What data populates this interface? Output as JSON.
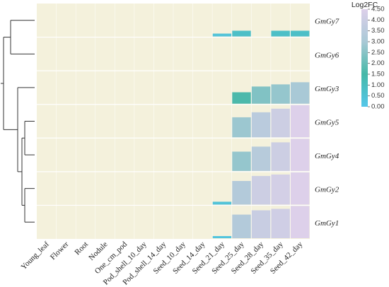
{
  "chart_data": {
    "type": "heatmap",
    "legend_title": "Log2FC",
    "legend_ticks": [
      "4.50",
      "4.00",
      "3.50",
      "3.00",
      "2.50",
      "2.00",
      "1.50",
      "1.00",
      "0.50",
      "0.00"
    ],
    "value_range": [
      0,
      4.5
    ],
    "color_scale": [
      "#55c7ea",
      "#45b8a8",
      "#a9c9d6",
      "#ddd0ea"
    ],
    "background_color": "#f4f1dc",
    "columns": [
      "Young_leaf",
      "Flower",
      "Root",
      "Nodule",
      "One_cm_pod",
      "Pod_shell_10_day",
      "Pod_shell_14_day",
      "Seed_10_day",
      "Seed_14_day",
      "Seed_21_day",
      "Seed_25_day",
      "Seed_28_day",
      "Seed_35_day",
      "Seed_42_day"
    ],
    "rows": [
      {
        "gene": "GmGy7",
        "values": [
          null,
          null,
          null,
          null,
          null,
          null,
          null,
          null,
          null,
          0.4,
          0.8,
          null,
          0.8,
          0.8
        ]
      },
      {
        "gene": "GmGy6",
        "values": [
          null,
          null,
          null,
          null,
          null,
          null,
          null,
          null,
          null,
          null,
          null,
          null,
          null,
          null
        ]
      },
      {
        "gene": "GmGy3",
        "values": [
          null,
          null,
          null,
          null,
          null,
          null,
          null,
          null,
          null,
          null,
          1.6,
          2.4,
          2.7,
          3.0
        ]
      },
      {
        "gene": "GmGy5",
        "values": [
          null,
          null,
          null,
          null,
          null,
          null,
          null,
          null,
          null,
          null,
          2.8,
          3.5,
          4.0,
          4.5
        ]
      },
      {
        "gene": "GmGy4",
        "values": [
          null,
          null,
          null,
          null,
          null,
          null,
          null,
          null,
          null,
          null,
          2.7,
          3.4,
          4.0,
          4.5
        ]
      },
      {
        "gene": "GmGy2",
        "values": [
          null,
          null,
          null,
          null,
          null,
          null,
          null,
          null,
          null,
          0.4,
          3.3,
          4.0,
          4.2,
          4.5
        ]
      },
      {
        "gene": "GmGy1",
        "values": [
          null,
          null,
          null,
          null,
          null,
          null,
          null,
          null,
          null,
          0.3,
          3.3,
          3.9,
          4.1,
          4.5
        ]
      }
    ],
    "dendrogram": "row"
  }
}
